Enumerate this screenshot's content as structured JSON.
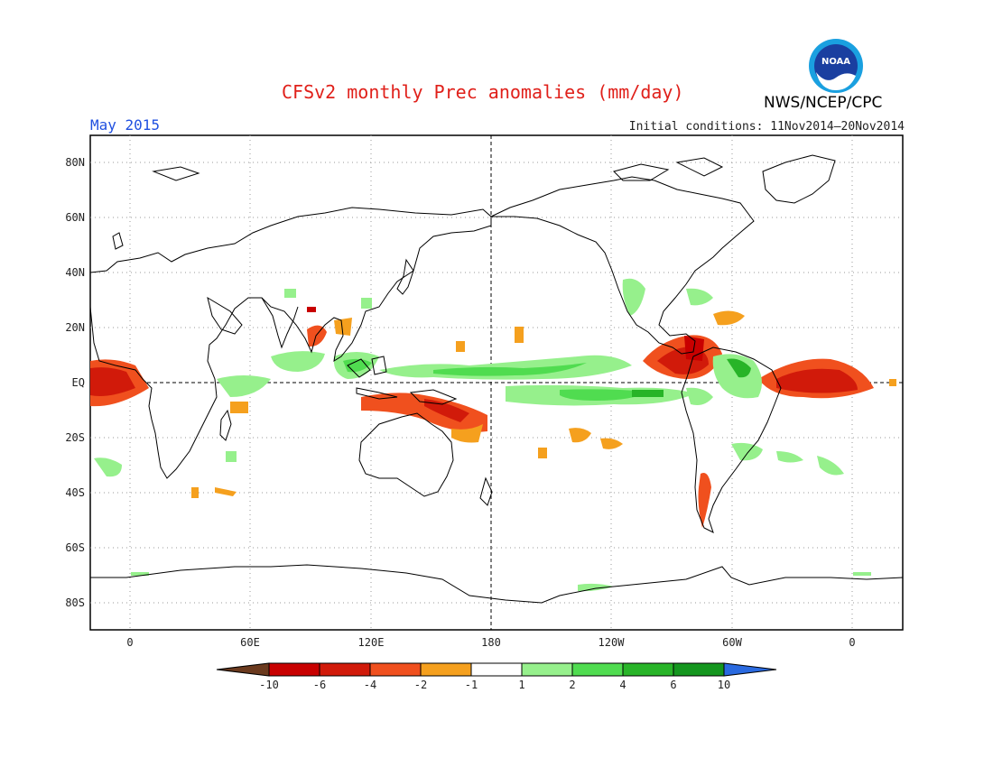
{
  "title": "CFSv2 monthly Prec anomalies (mm/day)",
  "agency": "NWS/NCEP/CPC",
  "logo_text": "NOAA",
  "valid_month": "May 2015",
  "initial_conditions": "Initial conditions: 11Nov2014–20Nov2014",
  "map": {
    "lat_labels": [
      "80N",
      "60N",
      "40N",
      "20N",
      "EQ",
      "20S",
      "40S",
      "60S",
      "80S"
    ],
    "lon_labels": [
      "0",
      "60E",
      "120E",
      "180",
      "120W",
      "60W",
      "0"
    ]
  },
  "colorbar": {
    "labels": [
      "-10",
      "-6",
      "-4",
      "-2",
      "-1",
      "1",
      "2",
      "4",
      "6",
      "10"
    ],
    "colors": [
      "#6b3a1e",
      "#c80000",
      "#d11a0a",
      "#f0501e",
      "#f5a01e",
      "#ffffff",
      "#96f08c",
      "#50dc50",
      "#28b428",
      "#14961e",
      "#2a6ae0"
    ]
  }
}
